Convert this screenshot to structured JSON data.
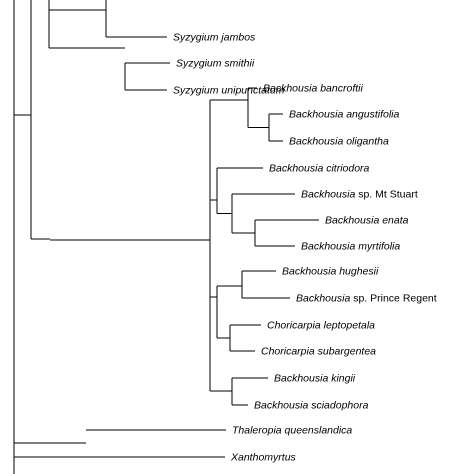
{
  "tree": {
    "taxa": [
      {
        "id": "syz_jam",
        "genus": "Syzygium",
        "epithet": "jambos",
        "qual": ""
      },
      {
        "id": "syz_smi",
        "genus": "Syzygium",
        "epithet": "smithii",
        "qual": ""
      },
      {
        "id": "syz_uni",
        "genus": "Syzygium",
        "epithet": "unipunctatum",
        "qual": ""
      },
      {
        "id": "bac_ban",
        "genus": "Backhousia",
        "epithet": "bancroftii",
        "qual": ""
      },
      {
        "id": "bac_ang",
        "genus": "Backhousia",
        "epithet": "angustifolia",
        "qual": ""
      },
      {
        "id": "bac_oli",
        "genus": "Backhousia",
        "epithet": "oligantha",
        "qual": ""
      },
      {
        "id": "bac_cit",
        "genus": "Backhousia",
        "epithet": "citriodora",
        "qual": ""
      },
      {
        "id": "bac_mts",
        "genus": "Backhousia",
        "epithet": "",
        "qual": "sp. Mt Stuart"
      },
      {
        "id": "bac_ena",
        "genus": "Backhousia",
        "epithet": "enata",
        "qual": ""
      },
      {
        "id": "bac_myr",
        "genus": "Backhousia",
        "epithet": "myrtifolia",
        "qual": ""
      },
      {
        "id": "bac_hug",
        "genus": "Backhousia",
        "epithet": "hughesii",
        "qual": ""
      },
      {
        "id": "bac_prr",
        "genus": "Backhousia",
        "epithet": "",
        "qual": "sp. Prince Regent"
      },
      {
        "id": "cho_lep",
        "genus": "Choricarpia",
        "epithet": "leptopetala",
        "qual": ""
      },
      {
        "id": "cho_sub",
        "genus": "Choricarpia",
        "epithet": "subargentea",
        "qual": ""
      },
      {
        "id": "bac_kin",
        "genus": "Backhousia",
        "epithet": "kingii",
        "qual": ""
      },
      {
        "id": "bac_sci",
        "genus": "Backhousia",
        "epithet": "sciadophora",
        "qual": ""
      },
      {
        "id": "tha_que",
        "genus": "Thaleropia",
        "epithet": "queenslandica",
        "qual": ""
      },
      {
        "id": "xan",
        "genus": "Xanthomyrtus",
        "epithet": "",
        "qual": ""
      }
    ]
  }
}
